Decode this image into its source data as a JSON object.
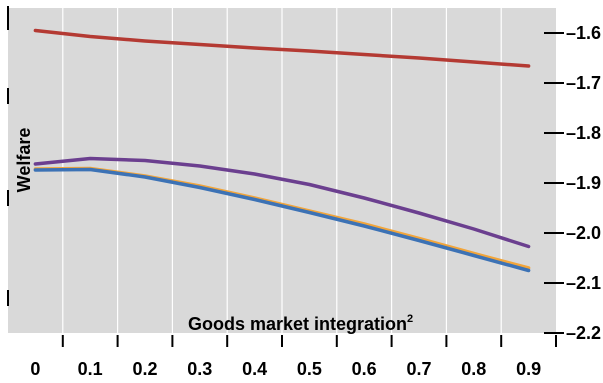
{
  "chart_data": {
    "type": "line",
    "xlabel": "Goods market integration",
    "xlabel_superscript": "2",
    "ylabel": "Welfare",
    "x": [
      0,
      0.1,
      0.2,
      0.3,
      0.4,
      0.5,
      0.6,
      0.7,
      0.8,
      0.9
    ],
    "x_tick_labels": [
      "0",
      "0.1",
      "0.2",
      "0.3",
      "0.4",
      "0.5",
      "0.6",
      "0.7",
      "0.8",
      "0.9"
    ],
    "xlim": [
      -0.05,
      0.95
    ],
    "ylim": [
      -2.2,
      -1.55
    ],
    "y_ticks": [
      -1.6,
      -1.7,
      -1.8,
      -1.9,
      -2.0,
      -2.1,
      -2.2
    ],
    "y_tick_labels": [
      "–1.6",
      "–1.7",
      "–1.8",
      "–1.9",
      "–2.0",
      "–2.1",
      "–2.2"
    ],
    "y_axis_side": "right",
    "grid": "vertical",
    "background": "#d9d9d9",
    "series": [
      {
        "color": "#b43a33",
        "values": [
          -1.595,
          -1.607,
          -1.616,
          -1.623,
          -1.63,
          -1.636,
          -1.643,
          -1.65,
          -1.658,
          -1.666
        ]
      },
      {
        "color": "#6b3f8f",
        "values": [
          -1.862,
          -1.851,
          -1.855,
          -1.866,
          -1.882,
          -1.903,
          -1.93,
          -1.96,
          -1.992,
          -2.027
        ]
      },
      {
        "color": "#f2a53a",
        "values": [
          -1.872,
          -1.871,
          -1.886,
          -1.906,
          -1.93,
          -1.956,
          -1.982,
          -2.011,
          -2.041,
          -2.07
        ]
      },
      {
        "color": "#3c72b5",
        "values": [
          -1.874,
          -1.873,
          -1.888,
          -1.909,
          -1.933,
          -1.959,
          -1.986,
          -2.015,
          -2.045,
          -2.075
        ]
      }
    ]
  }
}
